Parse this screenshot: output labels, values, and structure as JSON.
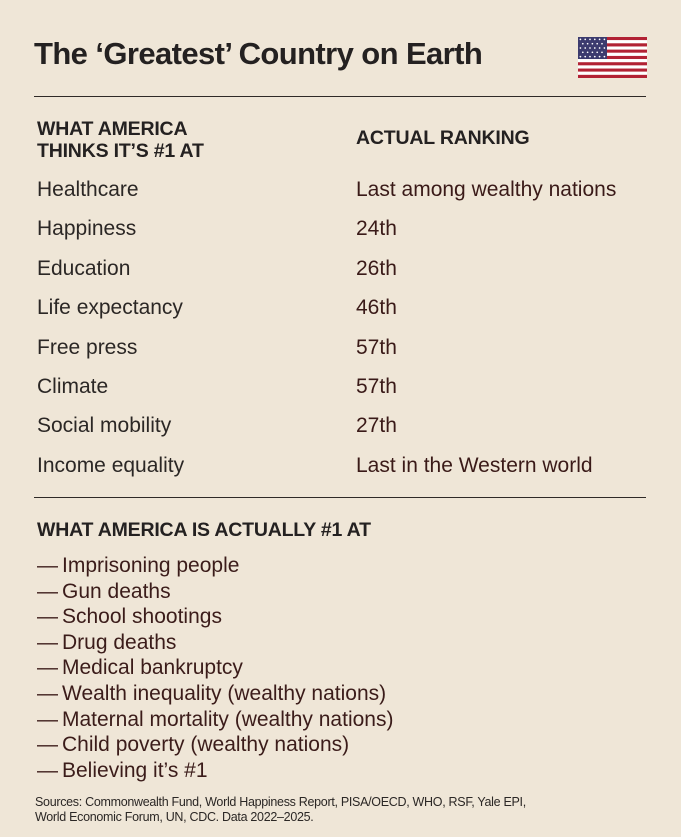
{
  "header": {
    "title": "The ‘Greatest’ Country on Earth",
    "flag_icon": "us-flag-icon"
  },
  "columns": {
    "left_heading_line1": "WHAT AMERICA",
    "left_heading_line2": "THINKS IT’S #1 AT",
    "right_heading": "ACTUAL RANKING"
  },
  "rankings": [
    {
      "area": "Healthcare",
      "rank": "Last among wealthy nations"
    },
    {
      "area": "Happiness",
      "rank": "24th"
    },
    {
      "area": "Education",
      "rank": "26th"
    },
    {
      "area": "Life expectancy",
      "rank": "46th"
    },
    {
      "area": "Free press",
      "rank": "57th"
    },
    {
      "area": "Climate",
      "rank": "57th"
    },
    {
      "area": "Social mobility",
      "rank": "27th"
    },
    {
      "area": "Income equality",
      "rank": "Last in the Western world"
    }
  ],
  "actually_number_one": {
    "heading": "WHAT AMERICA IS ACTUALLY #1 AT",
    "dash": "—",
    "items": [
      "Imprisoning people",
      "Gun deaths",
      "School shootings",
      "Drug deaths",
      "Medical bankruptcy",
      "Wealth inequality (wealthy nations)",
      "Maternal mortality (wealthy nations)",
      "Child poverty (wealthy nations)",
      "Believing it’s #1"
    ]
  },
  "footer": {
    "sources_line1": "Sources: Commonwealth Fund, World Happiness Report, PISA/OECD, WHO, RSF, Yale EPI,",
    "sources_line2": "World Economic Forum, UN, CDC. Data 2022–2025."
  },
  "colors": {
    "background": "#efe6d7",
    "text": "#2a2624",
    "accent_text": "#3b1c1a",
    "flag_red": "#b22234",
    "flag_blue": "#3c3b6e",
    "flag_white": "#ffffff"
  }
}
